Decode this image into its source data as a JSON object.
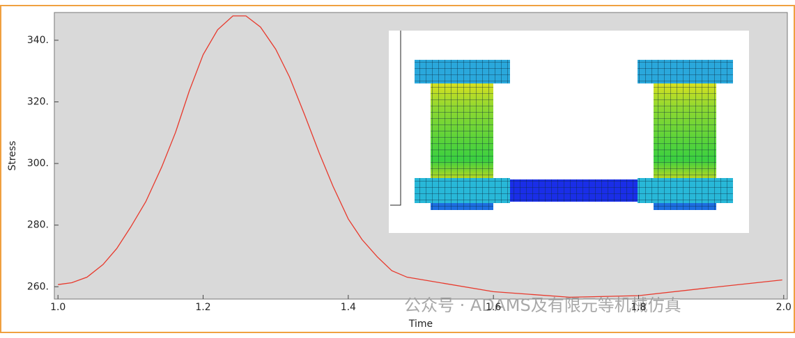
{
  "chart_data": {
    "type": "line",
    "xlabel": "Time",
    "ylabel": "Stress",
    "watermark": "公众号 · ADAMS及有限元等机械仿真",
    "color": "#e8392c",
    "x": [
      1.0,
      1.019,
      1.04,
      1.062,
      1.081,
      1.1,
      1.121,
      1.143,
      1.162,
      1.181,
      1.2,
      1.22,
      1.241,
      1.259,
      1.279,
      1.3,
      1.319,
      1.34,
      1.36,
      1.379,
      1.4,
      1.419,
      1.44,
      1.46,
      1.481,
      1.6,
      1.705,
      1.8,
      1.895,
      1.998
    ],
    "values": [
      260.7,
      261.3,
      263.1,
      267.2,
      272.4,
      279.3,
      287.6,
      298.9,
      310.1,
      323.6,
      335.3,
      343.4,
      347.9,
      347.9,
      344.3,
      337.1,
      328.1,
      315.7,
      303.4,
      292.6,
      282.0,
      275.3,
      269.7,
      265.2,
      263.1,
      258.4,
      256.6,
      257.1,
      259.6,
      262.2
    ],
    "xlim": [
      0.995,
      2.005
    ],
    "ylim": [
      256,
      349
    ],
    "xticks": [
      {
        "value": 1,
        "label": "1.0"
      },
      1.2,
      1.4,
      1.6,
      1.8,
      {
        "value": 2,
        "label": "2.0"
      }
    ],
    "yticks": [
      {
        "value": 260,
        "label": "260."
      },
      {
        "value": 280,
        "label": "280."
      },
      {
        "value": 300,
        "label": "300."
      },
      {
        "value": 320,
        "label": "320."
      },
      {
        "value": 340,
        "label": "340."
      }
    ]
  }
}
